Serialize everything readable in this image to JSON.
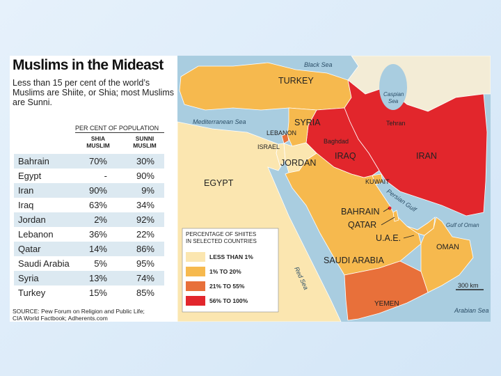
{
  "header": {
    "title": "Muslims in the Mideast",
    "subtitle": "Less than 15 per cent of the world’s Muslims are Shiite, or Shia; most Muslims are Sunni."
  },
  "table": {
    "group_header": "PER CENT OF POPULATION",
    "columns": [
      "SHIA MUSLIM",
      "SUNNI MUSLIM"
    ],
    "rows": [
      [
        "Bahrain",
        "70%",
        "30%"
      ],
      [
        "Egypt",
        "-",
        "90%"
      ],
      [
        "Iran",
        "90%",
        "9%"
      ],
      [
        "Iraq",
        "63%",
        "34%"
      ],
      [
        "Jordan",
        "2%",
        "92%"
      ],
      [
        "Lebanon",
        "36%",
        "22%"
      ],
      [
        "Qatar",
        "14%",
        "86%"
      ],
      [
        "Saudi Arabia",
        "5%",
        "95%"
      ],
      [
        "Syria",
        "13%",
        "74%"
      ],
      [
        "Turkey",
        "15%",
        "85%"
      ]
    ]
  },
  "source": [
    "SOURCE: Pew Forum on Religion and Public Life;",
    "CIA World Factbook; Adherents.com"
  ],
  "map": {
    "labels": [
      "Black Sea",
      "TURKEY",
      "Caspian",
      "Sea",
      "Mediterranean Sea",
      "SYRIA",
      "LEBANON",
      "ISRAEL",
      "Baghdad",
      "IRAQ",
      "Tehran",
      "IRAN",
      "JORDAN",
      "EGYPT",
      "KUWAIT",
      "Persian Gulf",
      "BAHRAIN",
      "QATAR",
      "U.A.E.",
      "Gulf of Oman",
      "OMAN",
      "SAUDI ARABIA",
      "Red Sea",
      "YEMEN",
      "300 km",
      "Arabian Sea"
    ],
    "legend": {
      "title": [
        "PERCENTAGE OF SHIITES",
        "IN SELECTED COUNTRIES"
      ],
      "items": [
        {
          "label": "LESS THAN 1%",
          "color": "#fbe6b0"
        },
        {
          "label": "1% TO 20%",
          "color": "#f6b94e"
        },
        {
          "label": "21% TO 55%",
          "color": "#e8703a"
        },
        {
          "label": "56% TO 100%",
          "color": "#e2262c"
        }
      ]
    }
  }
}
